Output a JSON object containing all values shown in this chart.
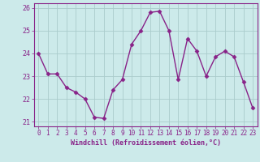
{
  "x": [
    0,
    1,
    2,
    3,
    4,
    5,
    6,
    7,
    8,
    9,
    10,
    11,
    12,
    13,
    14,
    15,
    16,
    17,
    18,
    19,
    20,
    21,
    22,
    23
  ],
  "y": [
    24.0,
    23.1,
    23.1,
    22.5,
    22.3,
    22.0,
    21.2,
    21.15,
    22.4,
    22.85,
    24.4,
    25.0,
    25.8,
    25.85,
    25.0,
    22.85,
    24.65,
    24.1,
    23.0,
    23.85,
    24.1,
    23.85,
    22.75,
    21.6
  ],
  "line_color": "#882288",
  "marker": "D",
  "markersize": 2.5,
  "linewidth": 1.0,
  "xlabel": "Windchill (Refroidissement éolien,°C)",
  "xlim": [
    -0.5,
    23.5
  ],
  "ylim": [
    20.8,
    26.2
  ],
  "yticks": [
    21,
    22,
    23,
    24,
    25,
    26
  ],
  "xticks": [
    0,
    1,
    2,
    3,
    4,
    5,
    6,
    7,
    8,
    9,
    10,
    11,
    12,
    13,
    14,
    15,
    16,
    17,
    18,
    19,
    20,
    21,
    22,
    23
  ],
  "bg_color": "#cceaea",
  "grid_color": "#aacccc",
  "label_color": "#882288",
  "tick_color": "#882288",
  "xlabel_fontsize": 6.0,
  "tick_fontsize": 5.5,
  "ytick_fontsize": 6.0
}
